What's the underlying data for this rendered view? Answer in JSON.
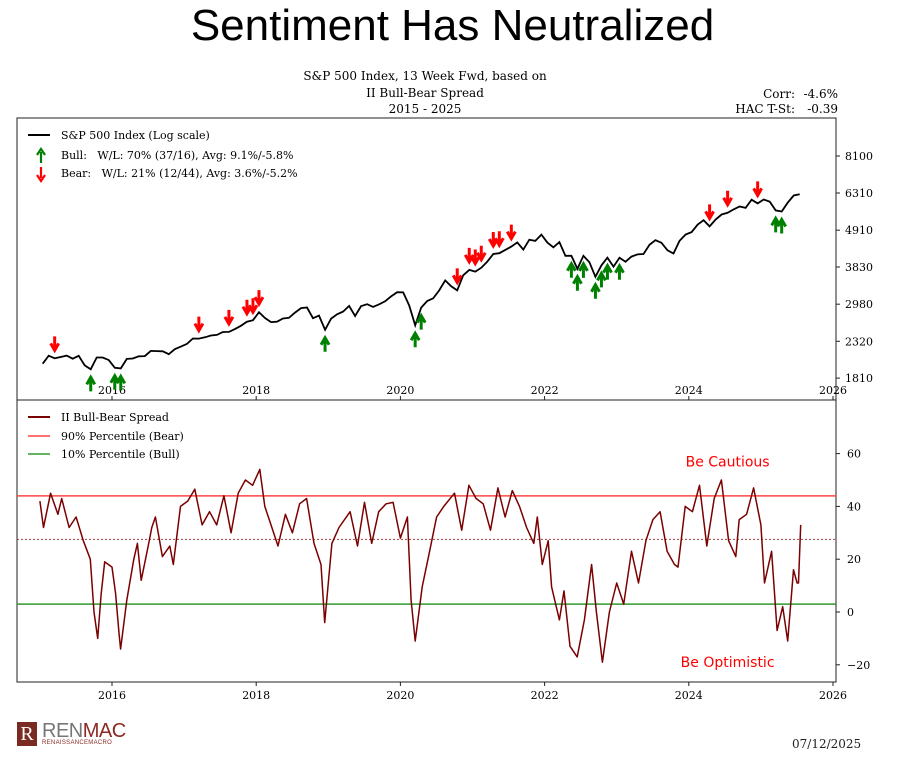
{
  "page_title": "Sentiment Has Neutralized",
  "footer": {
    "logo_mark": "R",
    "logo_text_a": "REN",
    "logo_text_b": "MAC",
    "logo_sub": "RENAISSANCEMACRO",
    "date": "07/12/2025"
  },
  "colors": {
    "price": "#000000",
    "bull": "#008000",
    "bear": "#ff0000",
    "spread": "#7b0000",
    "p90": "#ff4444",
    "p10": "#2e9a2e",
    "mid_dashed": "#a04040",
    "annotation": "#ff0000"
  },
  "chart_data": [
    {
      "type": "line",
      "title_lines": [
        "S&P 500 Index, 13 Week Fwd, based on",
        "II Bull-Bear Spread",
        "2015 - 2025"
      ],
      "stats": [
        {
          "label": "Corr:",
          "value": "-4.6%"
        },
        {
          "label": "HAC T-St:",
          "value": "-0.39"
        }
      ],
      "legend": [
        {
          "name": "S&P 500 Index (Log scale)",
          "icon": "line"
        },
        {
          "name": "Bull:   W/L: 70% (37/16), Avg: 9.1%/-5.8%",
          "icon": "arrow-up"
        },
        {
          "name": "Bear:   W/L: 21% (12/44), Avg: 3.6%/-5.2%",
          "icon": "arrow-down"
        }
      ],
      "legend_placement": "top-left",
      "y_scale": "log",
      "ylim": [
        1700,
        9000
      ],
      "xlim": [
        "2014-10",
        "2026-01"
      ],
      "yticks": [
        1810,
        2320,
        2980,
        3830,
        4910,
        6310,
        8100
      ],
      "xticks": [
        "2016",
        "2018",
        "2020",
        "2022",
        "2024",
        "2026"
      ],
      "grid": false,
      "series": {
        "dates": [
          "2015-01",
          "2015-02",
          "2015-03",
          "2015-04",
          "2015-05",
          "2015-06",
          "2015-07",
          "2015-08",
          "2015-09",
          "2015-10",
          "2015-11",
          "2015-12",
          "2016-01",
          "2016-02",
          "2016-03",
          "2016-04",
          "2016-05",
          "2016-06",
          "2016-07",
          "2016-08",
          "2016-09",
          "2016-10",
          "2016-11",
          "2016-12",
          "2017-01",
          "2017-02",
          "2017-03",
          "2017-04",
          "2017-05",
          "2017-06",
          "2017-07",
          "2017-08",
          "2017-09",
          "2017-10",
          "2017-11",
          "2017-12",
          "2018-01",
          "2018-02",
          "2018-03",
          "2018-04",
          "2018-05",
          "2018-06",
          "2018-07",
          "2018-08",
          "2018-09",
          "2018-10",
          "2018-11",
          "2018-12",
          "2019-01",
          "2019-02",
          "2019-03",
          "2019-04",
          "2019-05",
          "2019-06",
          "2019-07",
          "2019-08",
          "2019-09",
          "2019-10",
          "2019-11",
          "2019-12",
          "2020-01",
          "2020-02",
          "2020-03",
          "2020-04",
          "2020-05",
          "2020-06",
          "2020-07",
          "2020-08",
          "2020-09",
          "2020-10",
          "2020-11",
          "2020-12",
          "2021-01",
          "2021-02",
          "2021-03",
          "2021-04",
          "2021-05",
          "2021-06",
          "2021-07",
          "2021-08",
          "2021-09",
          "2021-10",
          "2021-11",
          "2021-12",
          "2022-01",
          "2022-02",
          "2022-03",
          "2022-04",
          "2022-05",
          "2022-06",
          "2022-07",
          "2022-08",
          "2022-09",
          "2022-10",
          "2022-11",
          "2022-12",
          "2023-01",
          "2023-02",
          "2023-03",
          "2023-04",
          "2023-05",
          "2023-06",
          "2023-07",
          "2023-08",
          "2023-09",
          "2023-10",
          "2023-11",
          "2023-12",
          "2024-01",
          "2024-02",
          "2024-03",
          "2024-04",
          "2024-05",
          "2024-06",
          "2024-07",
          "2024-08",
          "2024-09",
          "2024-10",
          "2024-11",
          "2024-12",
          "2025-01",
          "2025-02",
          "2025-03",
          "2025-04",
          "2025-05",
          "2025-06",
          "2025-07"
        ],
        "values": [
          1995,
          2105,
          2068,
          2086,
          2107,
          2063,
          2104,
          1972,
          1920,
          2079,
          2080,
          2044,
          1940,
          1932,
          2060,
          2065,
          2097,
          2099,
          2174,
          2171,
          2168,
          2126,
          2199,
          2239,
          2279,
          2364,
          2363,
          2384,
          2412,
          2423,
          2470,
          2472,
          2519,
          2575,
          2648,
          2674,
          2824,
          2714,
          2641,
          2648,
          2705,
          2718,
          2816,
          2902,
          2914,
          2712,
          2760,
          2507,
          2704,
          2784,
          2834,
          2946,
          2752,
          2942,
          2980,
          2926,
          2977,
          3038,
          3141,
          3231,
          3226,
          2954,
          2585,
          2912,
          3044,
          3100,
          3271,
          3500,
          3363,
          3270,
          3622,
          3756,
          3714,
          3811,
          3973,
          4181,
          4204,
          4298,
          4395,
          4523,
          4308,
          4605,
          4567,
          4766,
          4516,
          4374,
          4530,
          4132,
          4132,
          3785,
          4130,
          3955,
          3586,
          3872,
          4080,
          3840,
          4077,
          3970,
          4109,
          4169,
          4180,
          4450,
          4589,
          4508,
          4288,
          4194,
          4568,
          4770,
          4846,
          5096,
          5254,
          5036,
          5278,
          5460,
          5522,
          5648,
          5762,
          5705,
          6032,
          5882,
          6041,
          5955,
          5612,
          5569,
          5912,
          6205,
          6260
        ]
      },
      "bear_signals": [
        "2015-03",
        "2017-03",
        "2017-08",
        "2017-11",
        "2017-12",
        "2018-01",
        "2020-10",
        "2020-12",
        "2021-01",
        "2021-02",
        "2021-04",
        "2021-05",
        "2021-07",
        "2024-04",
        "2024-07",
        "2024-12"
      ],
      "bull_signals": [
        "2015-09",
        "2016-01",
        "2016-02",
        "2018-12",
        "2020-03",
        "2020-04",
        "2022-05",
        "2022-06",
        "2022-07",
        "2022-09",
        "2022-10",
        "2022-11",
        "2023-01",
        "2025-03",
        "2025-04"
      ]
    },
    {
      "type": "line",
      "legend": [
        {
          "name": "II Bull-Bear Spread"
        },
        {
          "name": "90% Percentile (Bear)"
        },
        {
          "name": "10% Percentile (Bull)"
        }
      ],
      "legend_placement": "top-left",
      "ylim": [
        -25,
        78
      ],
      "xlim": [
        "2014-10",
        "2026-01"
      ],
      "yticks": [
        -20,
        0,
        20,
        40,
        60
      ],
      "xticks": [
        "2016",
        "2018",
        "2020",
        "2022",
        "2024",
        "2026"
      ],
      "grid": false,
      "percentile_90": 44,
      "percentile_10": 3,
      "median_dashed": 27.5,
      "annotations": [
        {
          "text": "Be Cautious",
          "x": "2024-07",
          "y": 57
        },
        {
          "text": "Be Optimistic",
          "x": "2024-07",
          "y": -19
        }
      ],
      "series": {
        "dates": [
          "2015-01-01",
          "2015-01-19",
          "2015-02-25",
          "2015-04-01",
          "2015-04-20",
          "2015-05-27",
          "2015-07-02",
          "2015-08-08",
          "2015-09-13",
          "2015-10-01",
          "2015-10-20",
          "2015-11-07",
          "2015-11-25",
          "2016-01-01",
          "2016-01-19",
          "2016-02-06",
          "2016-02-14",
          "2016-03-15",
          "2016-04-20",
          "2016-05-08",
          "2016-05-27",
          "2016-07-02",
          "2016-07-20",
          "2016-08-08",
          "2016-09-13",
          "2016-10-20",
          "2016-11-07",
          "2016-12-13",
          "2017-01-19",
          "2017-02-25",
          "2017-04-01",
          "2017-05-08",
          "2017-06-14",
          "2017-07-20",
          "2017-08-26",
          "2017-10-01",
          "2017-11-07",
          "2017-12-13",
          "2018-01-19",
          "2018-02-14",
          "2018-03-15",
          "2018-04-20",
          "2018-05-27",
          "2018-07-02",
          "2018-08-08",
          "2018-09-13",
          "2018-10-20",
          "2018-11-25",
          "2018-12-13",
          "2019-01-19",
          "2019-02-25",
          "2019-04-20",
          "2019-05-27",
          "2019-07-02",
          "2019-08-08",
          "2019-09-13",
          "2019-10-20",
          "2019-11-25",
          "2020-01-01",
          "2020-02-06",
          "2020-02-25",
          "2020-03-15",
          "2020-04-20",
          "2020-05-27",
          "2020-07-02",
          "2020-08-08",
          "2020-10-01",
          "2020-11-07",
          "2020-12-13",
          "2021-01-19",
          "2021-02-25",
          "2021-04-01",
          "2021-05-08",
          "2021-06-14",
          "2021-07-20",
          "2021-08-26",
          "2021-10-01",
          "2021-11-07",
          "2021-11-25",
          "2021-12-20",
          "2022-01-19",
          "2022-02-06",
          "2022-03-15",
          "2022-04-08",
          "2022-05-08",
          "2022-06-14",
          "2022-07-20",
          "2022-08-26",
          "2022-09-20",
          "2022-10-20",
          "2022-11-25",
          "2023-01-01",
          "2023-02-06",
          "2023-03-15",
          "2023-04-20",
          "2023-05-27",
          "2023-07-02",
          "2023-08-08",
          "2023-09-13",
          "2023-10-20",
          "2023-11-07",
          "2023-12-13",
          "2024-01-19",
          "2024-02-25",
          "2024-04-01",
          "2024-05-08",
          "2024-06-14",
          "2024-07-20",
          "2024-08-26",
          "2024-09-13",
          "2024-10-20",
          "2024-11-25",
          "2025-01-01",
          "2025-01-19",
          "2025-02-25",
          "2025-03-22",
          "2025-04-20",
          "2025-05-15",
          "2025-06-14",
          "2025-07-02",
          "2025-07-09",
          "2025-07-20"
        ],
        "values": [
          42,
          32,
          45,
          37,
          43,
          32,
          36,
          27,
          20,
          0,
          -10,
          7,
          19,
          17,
          7,
          -8,
          -14,
          4.5,
          20,
          26,
          12,
          25,
          32,
          36,
          21,
          25,
          18,
          40,
          42,
          46.5,
          33,
          38,
          33,
          44,
          30,
          45,
          50,
          48,
          54,
          40,
          33,
          25,
          37,
          30,
          41,
          43,
          26,
          18,
          -4,
          26,
          32,
          38,
          25,
          41.5,
          26,
          38,
          41,
          41.5,
          28,
          36,
          4.5,
          -11,
          9.5,
          23,
          36,
          40,
          45,
          31,
          48,
          43,
          41,
          31,
          47,
          36,
          46,
          40,
          32,
          26,
          36,
          18,
          27,
          9.5,
          -3,
          8,
          -13,
          -17,
          -3,
          18,
          0,
          -19,
          0,
          11,
          3,
          23,
          11,
          27,
          35,
          38,
          23,
          18,
          17,
          40,
          38,
          48,
          25,
          43,
          50,
          27,
          21,
          35,
          37,
          47,
          33,
          11,
          23,
          -7,
          2,
          -11,
          16,
          11,
          11,
          33
        ]
      }
    }
  ]
}
